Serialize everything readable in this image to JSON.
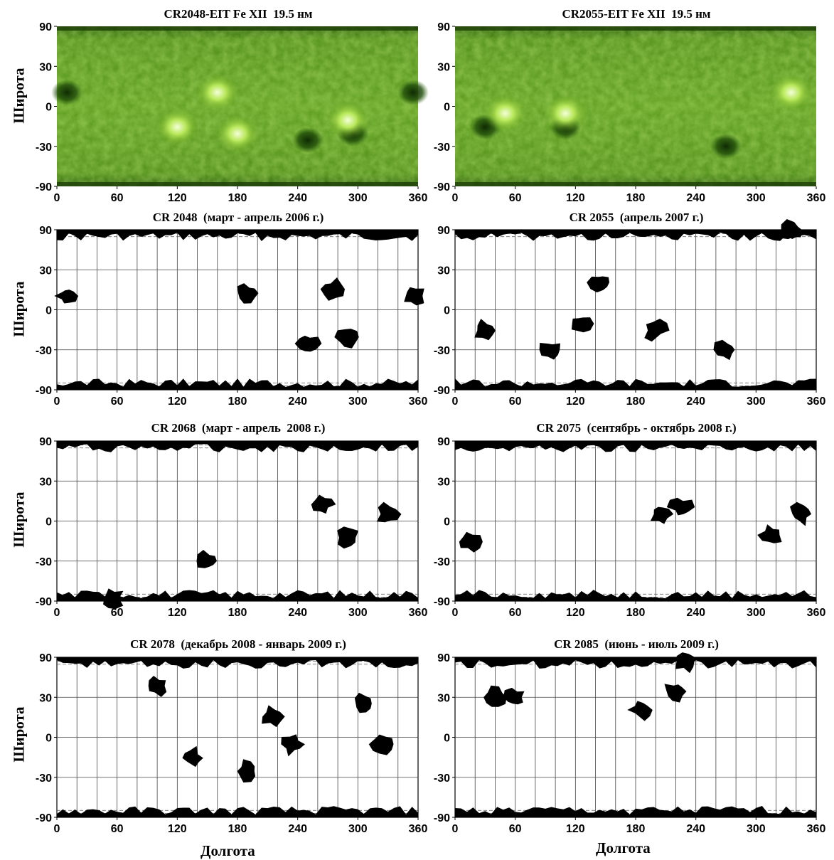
{
  "axes": {
    "ylabel": "Широта",
    "xlabel": "Долгота",
    "xticks": [
      "0",
      "60",
      "120",
      "180",
      "240",
      "300",
      "360"
    ],
    "yticks": [
      "90",
      "30",
      "0",
      "-30",
      "-90"
    ]
  },
  "panels": [
    {
      "title": "CR2048-EIT Fe XII  19.5 нм"
    },
    {
      "title": "CR2055-EIT Fe XII  19.5 нм"
    },
    {
      "title": "CR 2048  (март - апрель 2006 г.)"
    },
    {
      "title": "CR 2055  (апрель 2007 г.)"
    },
    {
      "title": "CR 2068  (март - апрель  2008 г.)"
    },
    {
      "title": "CR 2075  (сентябрь - октябрь 2008 г.)"
    },
    {
      "title": "CR 2078  (декабрь 2008 - январь 2009 г.)"
    },
    {
      "title": "CR 2085  (июнь - июль 2009 г.)"
    }
  ],
  "chart_data": [
    {
      "type": "heatmap",
      "title": "CR2048-EIT Fe XII  19.5 нм",
      "ylabel": "Широта",
      "xlim": [
        0,
        360
      ],
      "ylim": [
        -90,
        90
      ],
      "colormap": "green",
      "bright_regions": [
        [
          120,
          -15
        ],
        [
          180,
          -20
        ],
        [
          160,
          10
        ],
        [
          290,
          -10
        ]
      ],
      "dark_regions": [
        [
          250,
          -25
        ],
        [
          295,
          -20
        ],
        [
          10,
          10
        ],
        [
          355,
          10
        ]
      ]
    },
    {
      "type": "heatmap",
      "title": "CR2055-EIT Fe XII  19.5 нм",
      "xlim": [
        0,
        360
      ],
      "ylim": [
        -90,
        90
      ],
      "colormap": "green",
      "bright_regions": [
        [
          335,
          10
        ],
        [
          50,
          -5
        ],
        [
          110,
          -5
        ]
      ],
      "dark_regions": [
        [
          30,
          -15
        ],
        [
          110,
          -15
        ],
        [
          270,
          -30
        ]
      ]
    },
    {
      "type": "scatter",
      "title": "CR 2048  (март - апрель 2006 г.)",
      "ylabel": "Широта",
      "xlim": [
        0,
        360
      ],
      "ylim": [
        -90,
        90
      ],
      "grid": true,
      "coronal_holes": [
        [
          10,
          10
        ],
        [
          250,
          -25
        ],
        [
          290,
          -20
        ],
        [
          275,
          15
        ],
        [
          190,
          12
        ],
        [
          355,
          10
        ]
      ]
    },
    {
      "type": "scatter",
      "title": "CR 2055  (апрель 2007 г.)",
      "xlim": [
        0,
        360
      ],
      "ylim": [
        -90,
        90
      ],
      "grid": true,
      "coronal_holes": [
        [
          30,
          -15
        ],
        [
          125,
          -10
        ],
        [
          95,
          -30
        ],
        [
          145,
          20
        ],
        [
          270,
          -30
        ],
        [
          200,
          -15
        ],
        [
          335,
          80
        ]
      ]
    },
    {
      "type": "scatter",
      "title": "CR 2068  (март - апрель  2008 г.)",
      "ylabel": "Широта",
      "xlim": [
        0,
        360
      ],
      "ylim": [
        -90,
        90
      ],
      "grid": true,
      "coronal_holes": [
        [
          150,
          -30
        ],
        [
          265,
          12
        ],
        [
          290,
          -12
        ],
        [
          330,
          5
        ],
        [
          55,
          -75
        ]
      ]
    },
    {
      "type": "scatter",
      "title": "CR 2075  (сентябрь - октябрь 2008 г.)",
      "xlim": [
        0,
        360
      ],
      "ylim": [
        -90,
        90
      ],
      "grid": true,
      "coronal_holes": [
        [
          315,
          -10
        ],
        [
          205,
          5
        ],
        [
          225,
          10
        ],
        [
          345,
          5
        ],
        [
          15,
          -15
        ]
      ]
    },
    {
      "type": "scatter",
      "title": "CR 2078  (декабрь 2008 - январь 2009 г.)",
      "ylabel": "Широта",
      "xlabel": "Долгота",
      "xlim": [
        0,
        360
      ],
      "ylim": [
        -90,
        90
      ],
      "grid": true,
      "coronal_holes": [
        [
          100,
          40
        ],
        [
          215,
          15
        ],
        [
          235,
          -5
        ],
        [
          190,
          -25
        ],
        [
          325,
          -5
        ],
        [
          135,
          -15
        ],
        [
          305,
          25
        ]
      ]
    },
    {
      "type": "scatter",
      "title": "CR 2085  (июнь - июль 2009 г.)",
      "xlabel": "Долгота",
      "xlim": [
        0,
        360
      ],
      "ylim": [
        -90,
        90
      ],
      "grid": true,
      "coronal_holes": [
        [
          60,
          30
        ],
        [
          185,
          20
        ],
        [
          220,
          35
        ],
        [
          40,
          30
        ],
        [
          230,
          70
        ]
      ]
    }
  ]
}
